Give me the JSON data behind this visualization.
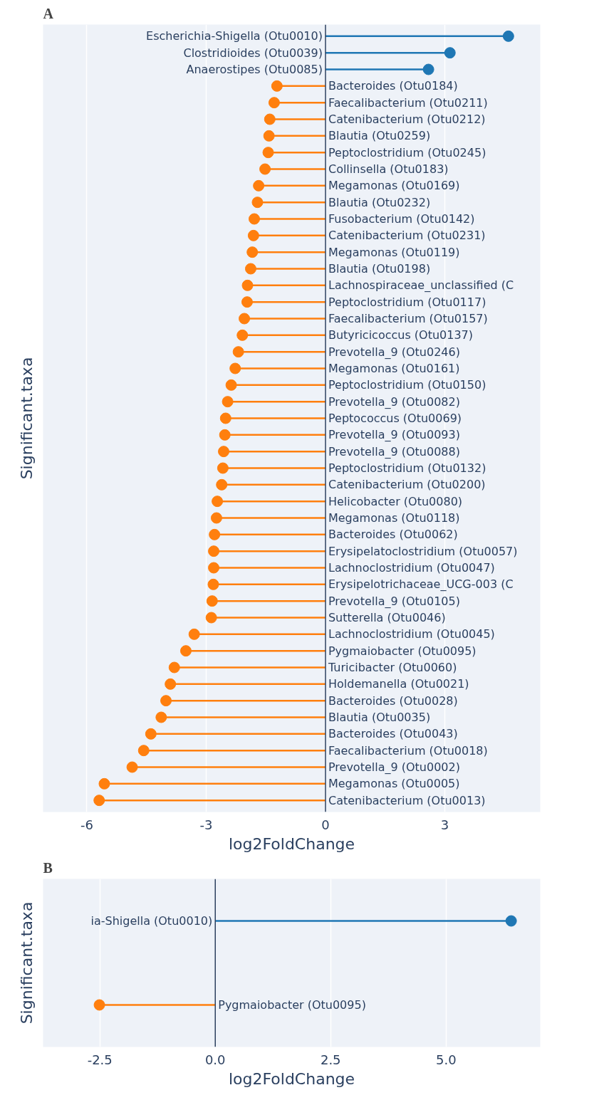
{
  "chart_data": [
    {
      "type": "lollipop",
      "orientation": "horizontal",
      "title": "A",
      "xlabel": "log2FoldChange",
      "ylabel": "Significant.taxa",
      "categories": [
        "Escherichia-Shigella (Otu0010)",
        "Clostridioides (Otu0039)",
        "Anaerostipes (Otu0085)",
        "Bacteroides (Otu0184)",
        "Faecalibacterium (Otu0211)",
        "Catenibacterium (Otu0212)",
        "Blautia (Otu0259)",
        "Peptoclostridium (Otu0245)",
        "Collinsella (Otu0183)",
        "Megamonas (Otu0169)",
        "Blautia (Otu0232)",
        "Fusobacterium (Otu0142)",
        "Catenibacterium (Otu0231)",
        "Megamonas (Otu0119)",
        "Blautia (Otu0198)",
        "Lachnospiraceae_unclassified (C",
        "Peptoclostridium (Otu0117)",
        "Faecalibacterium (Otu0157)",
        "Butyricicoccus (Otu0137)",
        "Prevotella_9 (Otu0246)",
        "Megamonas (Otu0161)",
        "Peptoclostridium (Otu0150)",
        "Prevotella_9 (Otu0082)",
        "Peptococcus (Otu0069)",
        "Prevotella_9 (Otu0093)",
        "Prevotella_9 (Otu0088)",
        "Peptoclostridium (Otu0132)",
        "Catenibacterium (Otu0200)",
        "Helicobacter (Otu0080)",
        "Megamonas (Otu0118)",
        "Bacteroides (Otu0062)",
        "Erysipelatoclostridium (Otu0057)",
        "Lachnoclostridium (Otu0047)",
        "Erysipelotrichaceae_UCG-003 (C",
        "Prevotella_9 (Otu0105)",
        "Sutterella (Otu0046)",
        "Lachnoclostridium (Otu0045)",
        "Pygmaiobacter (Otu0095)",
        "Turicibacter (Otu0060)",
        "Holdemanella (Otu0021)",
        "Bacteroides (Otu0028)",
        "Blautia (Otu0035)",
        "Bacteroides (Otu0043)",
        "Faecalibacterium (Otu0018)",
        "Prevotella_9 (Otu0002)",
        "Megamonas (Otu0005)",
        "Catenibacterium (Otu0013)"
      ],
      "values": [
        4.6,
        3.13,
        2.59,
        -1.22,
        -1.29,
        -1.4,
        -1.42,
        -1.44,
        -1.52,
        -1.68,
        -1.71,
        -1.79,
        -1.81,
        -1.84,
        -1.88,
        -1.96,
        -1.97,
        -2.04,
        -2.09,
        -2.19,
        -2.27,
        -2.37,
        -2.46,
        -2.51,
        -2.53,
        -2.56,
        -2.58,
        -2.61,
        -2.72,
        -2.74,
        -2.79,
        -2.81,
        -2.81,
        -2.82,
        -2.85,
        -2.87,
        -3.3,
        -3.51,
        -3.8,
        -3.9,
        -4.01,
        -4.13,
        -4.39,
        -4.57,
        -4.86,
        -5.56,
        -5.69
      ],
      "colors": [
        "#1f77b4",
        "#1f77b4",
        "#1f77b4",
        "#ff7f0e",
        "#ff7f0e",
        "#ff7f0e",
        "#ff7f0e",
        "#ff7f0e",
        "#ff7f0e",
        "#ff7f0e",
        "#ff7f0e",
        "#ff7f0e",
        "#ff7f0e",
        "#ff7f0e",
        "#ff7f0e",
        "#ff7f0e",
        "#ff7f0e",
        "#ff7f0e",
        "#ff7f0e",
        "#ff7f0e",
        "#ff7f0e",
        "#ff7f0e",
        "#ff7f0e",
        "#ff7f0e",
        "#ff7f0e",
        "#ff7f0e",
        "#ff7f0e",
        "#ff7f0e",
        "#ff7f0e",
        "#ff7f0e",
        "#ff7f0e",
        "#ff7f0e",
        "#ff7f0e",
        "#ff7f0e",
        "#ff7f0e",
        "#ff7f0e",
        "#ff7f0e",
        "#ff7f0e",
        "#ff7f0e",
        "#ff7f0e",
        "#ff7f0e",
        "#ff7f0e",
        "#ff7f0e",
        "#ff7f0e",
        "#ff7f0e",
        "#ff7f0e",
        "#ff7f0e"
      ],
      "xlim": [
        -7.1,
        5.4
      ],
      "xticks": [
        -6,
        -3,
        0,
        3
      ],
      "grid": "x",
      "tick_labels": "x",
      "marker": "circle",
      "ref_lines": [
        {
          "axis": "x",
          "value": 0,
          "color": "#2a3f5f"
        }
      ]
    },
    {
      "type": "lollipop",
      "orientation": "horizontal",
      "title": "B",
      "xlabel": "log2FoldChange",
      "ylabel": "Significant.taxa",
      "categories": [
        "ia-Shigella (Otu0010)",
        "Pygmaiobacter (Otu0095)"
      ],
      "values": [
        6.41,
        -2.51
      ],
      "colors": [
        "#1f77b4",
        "#ff7f0e"
      ],
      "xlim": [
        -3.73,
        7.04
      ],
      "xticks": [
        -2.5,
        {
          "value": 0,
          "label": "0.0"
        },
        2.5,
        {
          "value": 5,
          "label": "5.0"
        }
      ],
      "grid": "x",
      "tick_labels": "x",
      "marker": "circle",
      "ref_lines": [
        {
          "axis": "x",
          "value": 0,
          "color": "#2a3f5f"
        }
      ]
    }
  ]
}
